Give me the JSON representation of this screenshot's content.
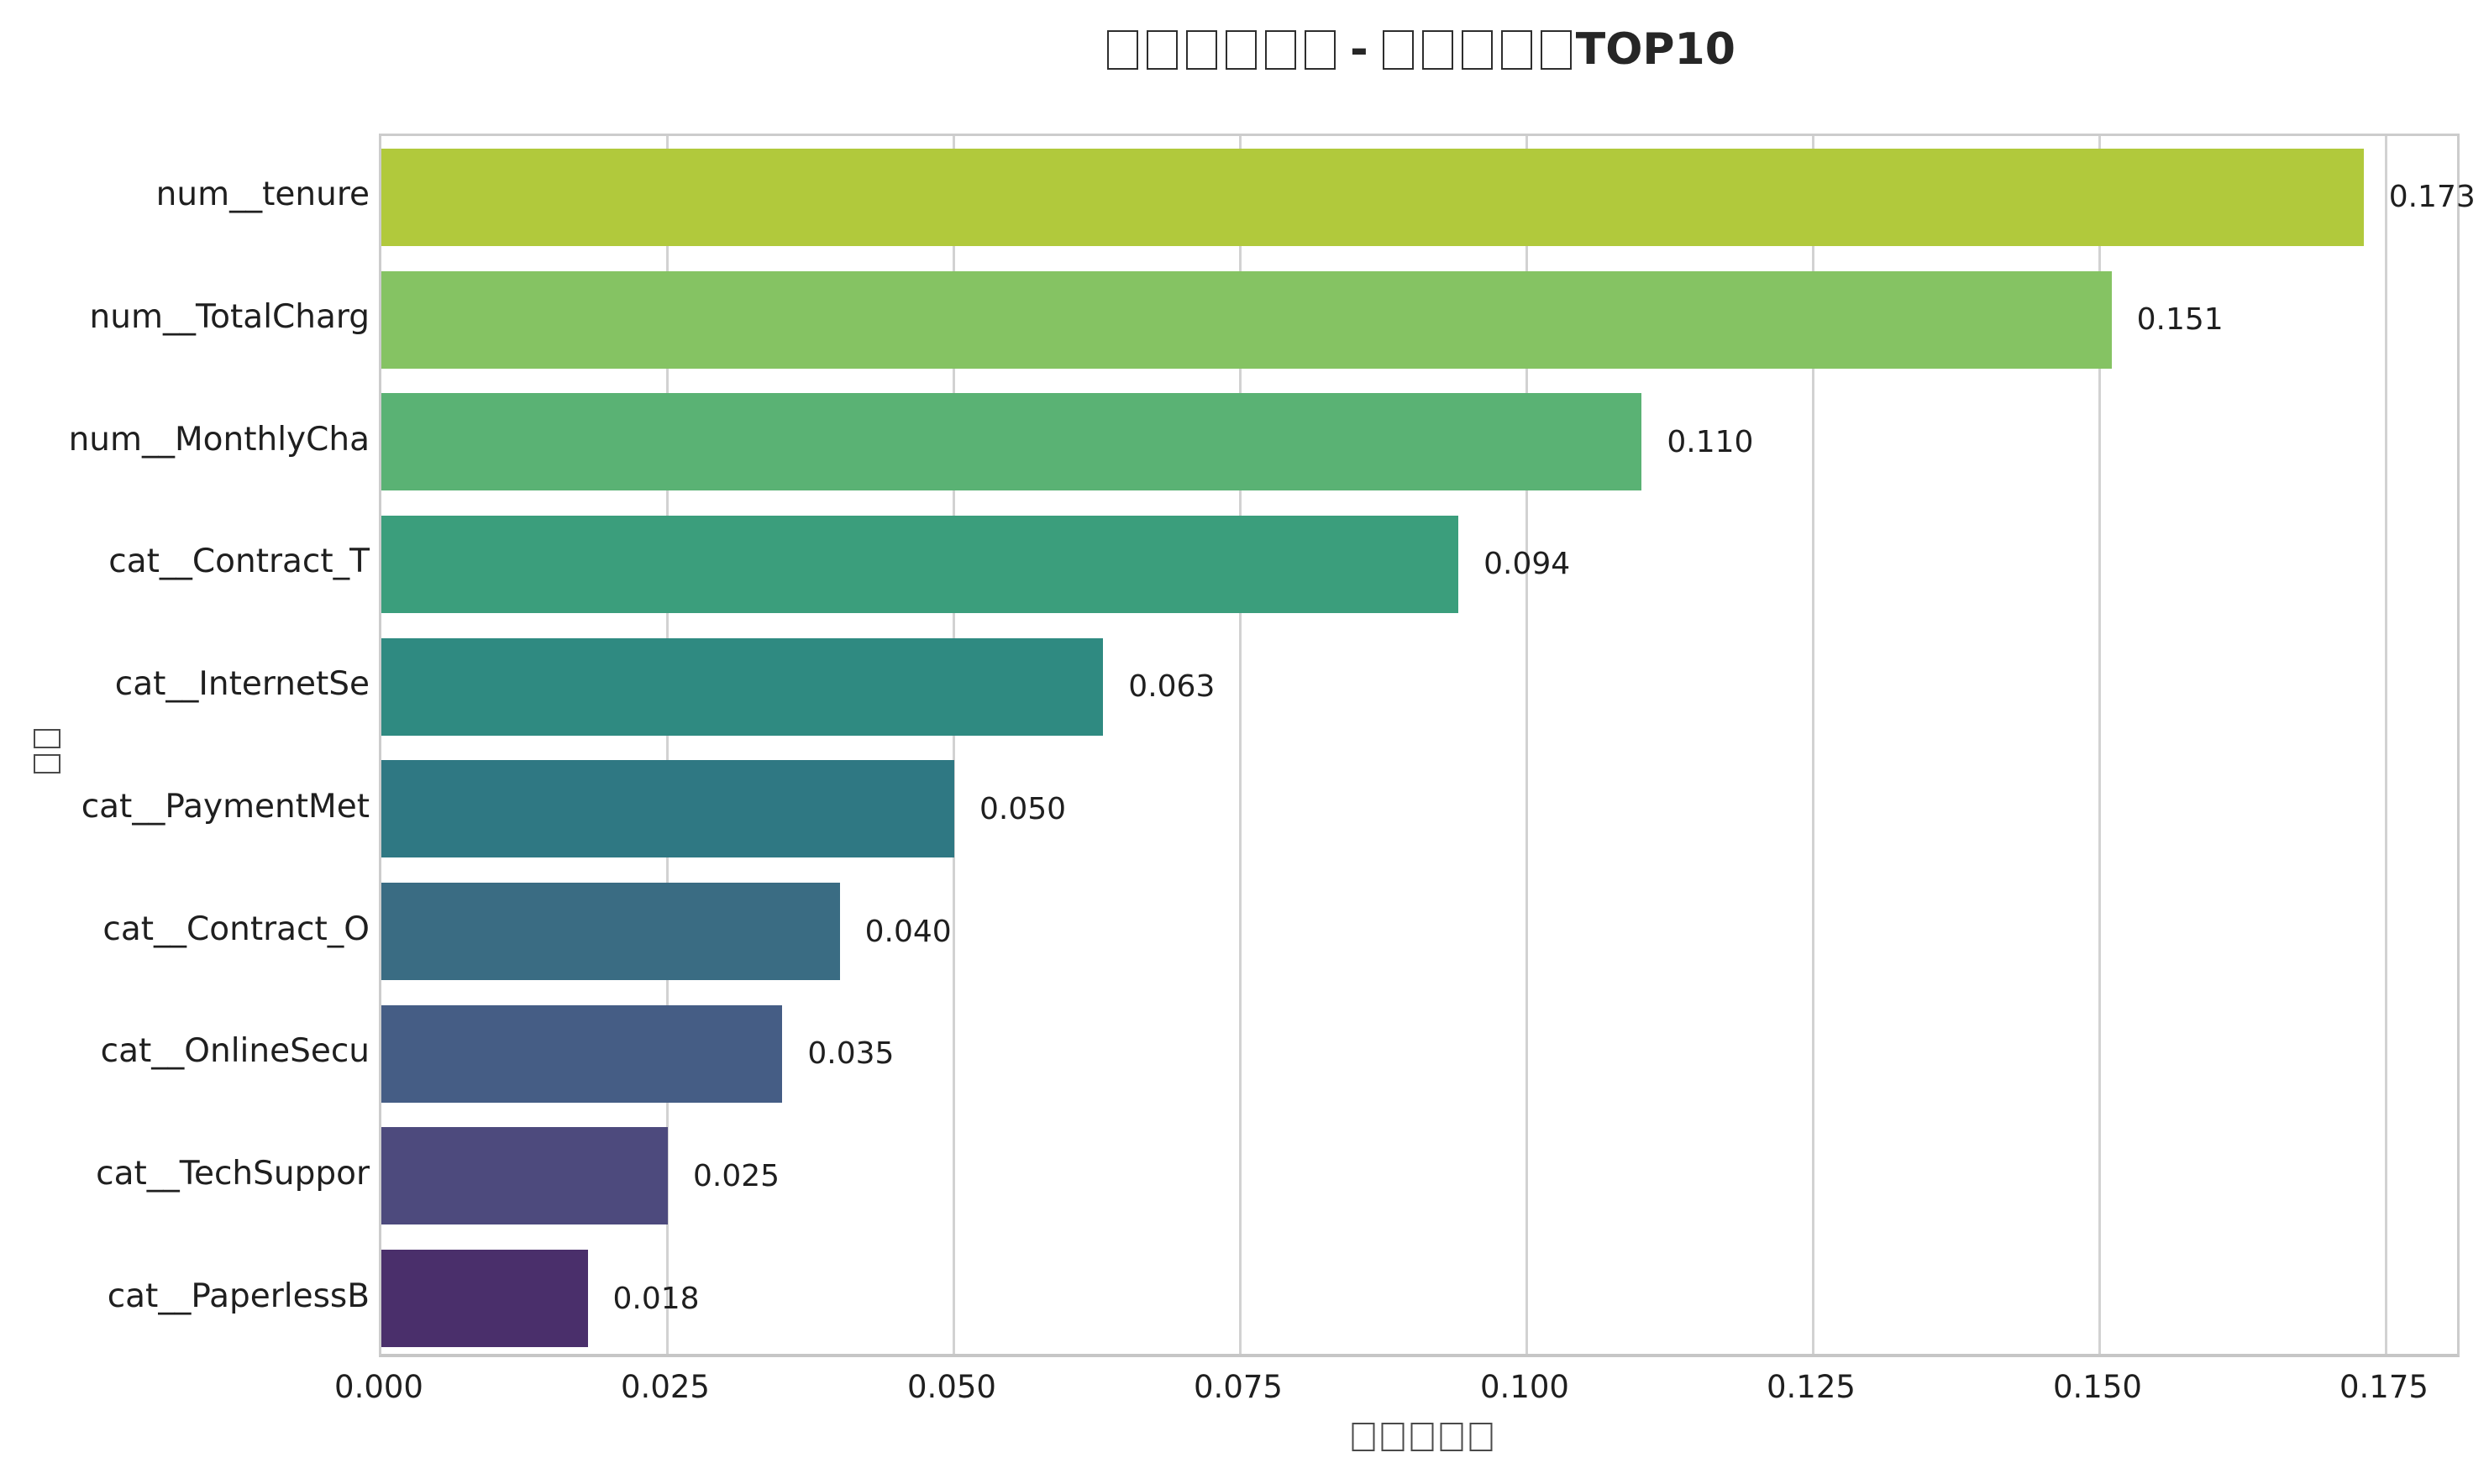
{
  "title": {
    "text": "□□□□□□ - □□□□□TOP10",
    "missing_glyph_prefix_count": 6,
    "separator": "-",
    "missing_glyph_middle_count": 5,
    "suffix": "TOP10"
  },
  "chart_data": {
    "type": "bar",
    "orientation": "horizontal",
    "title": "□□□□□□ - □□□□□TOP10",
    "categories": [
      "num__tenure",
      "num__TotalCharg",
      "num__MonthlyCha",
      "cat__Contract_T",
      "cat__InternetSe",
      "cat__PaymentMet",
      "cat__Contract_O",
      "cat__OnlineSecu",
      "cat__TechSuppor",
      "cat__PaperlessB"
    ],
    "values": [
      0.173,
      0.151,
      0.11,
      0.094,
      0.063,
      0.05,
      0.04,
      0.035,
      0.025,
      0.018
    ],
    "value_labels": [
      "0.173",
      "0.151",
      "0.110",
      "0.094",
      "0.063",
      "0.050",
      "0.040",
      "0.035",
      "0.025",
      "0.018"
    ],
    "bar_colors": [
      "#b1c93c",
      "#85c363",
      "#5ab274",
      "#3b9e7c",
      "#2f8a81",
      "#2f7883",
      "#3a6c83",
      "#455d85",
      "#4d4a7d",
      "#4a2f6b"
    ],
    "x_tick_labels": [
      "0.000",
      "0.025",
      "0.050",
      "0.075",
      "0.100",
      "0.125",
      "0.150",
      "0.175"
    ],
    "x_tick_values": [
      0.0,
      0.025,
      0.05,
      0.075,
      0.1,
      0.125,
      0.15,
      0.175
    ],
    "xlim": [
      0,
      0.1816
    ],
    "xlabel": "□□□□□",
    "xlabel_missing_glyph_count": 5,
    "ylabel": "□□",
    "ylabel_missing_glyph_count": 2,
    "grid": true,
    "legend": null
  },
  "colors": {
    "background": "#ffffff",
    "text": "#1f1f1f",
    "gridline": "#d2d2d2",
    "spine": "#cccccc"
  }
}
